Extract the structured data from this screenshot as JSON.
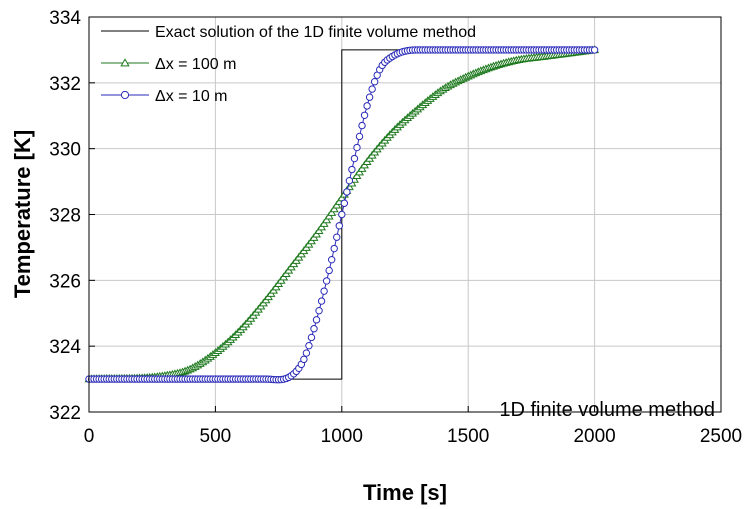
{
  "chart_data": {
    "type": "line",
    "xlabel": "Time  [s]",
    "ylabel": "Temperature  [K]",
    "xlim": [
      0,
      2500
    ],
    "ylim": [
      322,
      334
    ],
    "xticks": [
      0,
      500,
      1000,
      1500,
      2000,
      2500
    ],
    "yticks": [
      322,
      324,
      326,
      328,
      330,
      332,
      334
    ],
    "grid": true,
    "legend_position": "top-left",
    "annotation": "1D finite volume method",
    "series": [
      {
        "name": "Exact solution of the 1D finite volume method",
        "color": "#000000",
        "marker": "none",
        "x": [
          0,
          1000,
          1000,
          2000
        ],
        "y": [
          323.0,
          323.0,
          333.0,
          333.0
        ]
      },
      {
        "name": "Δx = 100 m",
        "color": "#1f7a1f",
        "marker": "triangle",
        "x": [
          0,
          300,
          400,
          500,
          600,
          700,
          800,
          900,
          1000,
          1100,
          1200,
          1300,
          1400,
          1500,
          1600,
          1700,
          1800,
          1900,
          2000
        ],
        "y": [
          323.0,
          323.1,
          323.3,
          323.8,
          324.5,
          325.4,
          326.4,
          327.4,
          328.5,
          329.6,
          330.5,
          331.2,
          331.8,
          332.2,
          332.5,
          332.7,
          332.8,
          332.9,
          333.0
        ]
      },
      {
        "name": "Δx = 10 m",
        "color": "#2a2ab8",
        "marker": "circle",
        "x": [
          0,
          700,
          800,
          850,
          900,
          950,
          1000,
          1050,
          1100,
          1150,
          1200,
          1300,
          1400,
          2000
        ],
        "y": [
          323.0,
          323.0,
          323.1,
          323.6,
          324.8,
          326.3,
          328.0,
          329.7,
          331.3,
          332.4,
          332.8,
          333.0,
          333.0,
          333.0
        ]
      }
    ]
  }
}
